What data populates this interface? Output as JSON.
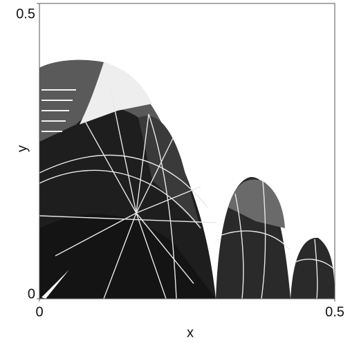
{
  "chart_data": {
    "type": "image",
    "xlabel": "x",
    "ylabel": "y",
    "xlim": [
      0,
      0.5
    ],
    "ylim": [
      0,
      0.5
    ],
    "xticks": [
      0,
      0.5
    ],
    "yticks": [
      0,
      0.5
    ]
  }
}
